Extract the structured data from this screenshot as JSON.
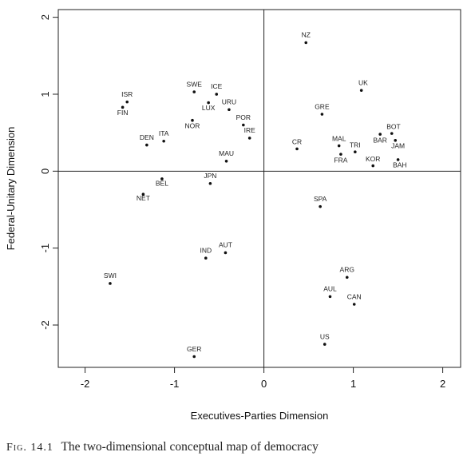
{
  "caption": {
    "fig_label": "Fig. 14.1",
    "text": "The two-dimensional conceptual map of democracy"
  },
  "chart_data": {
    "type": "scatter",
    "xlabel": "Executives-Parties Dimension",
    "ylabel": "Federal-Unitary Dimension",
    "xlim": [
      -2.3,
      2.2
    ],
    "ylim": [
      -2.55,
      2.1
    ],
    "xticks": [
      -2,
      -1,
      0,
      1,
      2
    ],
    "yticks": [
      -2,
      -1,
      0,
      1,
      2
    ],
    "xtick_labels": [
      "-2",
      "-1",
      "0",
      "1",
      "2"
    ],
    "ytick_labels": [
      "-2",
      "-1",
      "0",
      "1",
      "2"
    ],
    "reference_lines": {
      "x": 0,
      "y": 0
    },
    "grid": false,
    "points": [
      {
        "label": "NZ",
        "x": 0.47,
        "y": 1.67,
        "lx": 0.47,
        "ly": 1.74
      },
      {
        "label": "UK",
        "x": 1.09,
        "y": 1.05,
        "lx": 1.11,
        "ly": 1.12
      },
      {
        "label": "GRE",
        "x": 0.65,
        "y": 0.74,
        "lx": 0.65,
        "ly": 0.81
      },
      {
        "label": "BOT",
        "x": 1.43,
        "y": 0.49,
        "lx": 1.45,
        "ly": 0.55
      },
      {
        "label": "BAR",
        "x": 1.3,
        "y": 0.48,
        "lx": 1.3,
        "ly": 0.37
      },
      {
        "label": "JAM",
        "x": 1.47,
        "y": 0.4,
        "lx": 1.5,
        "ly": 0.3
      },
      {
        "label": "CR",
        "x": 0.37,
        "y": 0.29,
        "lx": 0.37,
        "ly": 0.35
      },
      {
        "label": "MAL",
        "x": 0.84,
        "y": 0.33,
        "lx": 0.84,
        "ly": 0.39
      },
      {
        "label": "TRI",
        "x": 1.02,
        "y": 0.25,
        "lx": 1.02,
        "ly": 0.31
      },
      {
        "label": "FRA",
        "x": 0.86,
        "y": 0.22,
        "lx": 0.86,
        "ly": 0.11
      },
      {
        "label": "KOR",
        "x": 1.22,
        "y": 0.07,
        "lx": 1.22,
        "ly": 0.13
      },
      {
        "label": "BAH",
        "x": 1.5,
        "y": 0.15,
        "lx": 1.52,
        "ly": 0.05
      },
      {
        "label": "SPA",
        "x": 0.63,
        "y": -0.46,
        "lx": 0.63,
        "ly": -0.39
      },
      {
        "label": "ARG",
        "x": 0.93,
        "y": -1.38,
        "lx": 0.93,
        "ly": -1.31
      },
      {
        "label": "AUL",
        "x": 0.74,
        "y": -1.63,
        "lx": 0.74,
        "ly": -1.56
      },
      {
        "label": "CAN",
        "x": 1.01,
        "y": -1.73,
        "lx": 1.01,
        "ly": -1.66
      },
      {
        "label": "US",
        "x": 0.68,
        "y": -2.25,
        "lx": 0.68,
        "ly": -2.18
      },
      {
        "label": "ISR",
        "x": -1.53,
        "y": 0.9,
        "lx": -1.53,
        "ly": 0.97
      },
      {
        "label": "FIN",
        "x": -1.58,
        "y": 0.83,
        "lx": -1.58,
        "ly": 0.73
      },
      {
        "label": "SWE",
        "x": -0.78,
        "y": 1.03,
        "lx": -0.78,
        "ly": 1.1
      },
      {
        "label": "ICE",
        "x": -0.53,
        "y": 1.0,
        "lx": -0.53,
        "ly": 1.07
      },
      {
        "label": "URU",
        "x": -0.39,
        "y": 0.8,
        "lx": -0.39,
        "ly": 0.87
      },
      {
        "label": "LUX",
        "x": -0.62,
        "y": 0.89,
        "lx": -0.62,
        "ly": 0.79
      },
      {
        "label": "POR",
        "x": -0.23,
        "y": 0.6,
        "lx": -0.23,
        "ly": 0.67
      },
      {
        "label": "NOR",
        "x": -0.8,
        "y": 0.66,
        "lx": -0.8,
        "ly": 0.56
      },
      {
        "label": "IRE",
        "x": -0.16,
        "y": 0.43,
        "lx": -0.16,
        "ly": 0.5
      },
      {
        "label": "ITA",
        "x": -1.12,
        "y": 0.39,
        "lx": -1.12,
        "ly": 0.46
      },
      {
        "label": "DEN",
        "x": -1.31,
        "y": 0.34,
        "lx": -1.31,
        "ly": 0.41
      },
      {
        "label": "MAU",
        "x": -0.42,
        "y": 0.13,
        "lx": -0.42,
        "ly": 0.2
      },
      {
        "label": "JPN",
        "x": -0.6,
        "y": -0.16,
        "lx": -0.6,
        "ly": -0.09
      },
      {
        "label": "BEL",
        "x": -1.14,
        "y": -0.1,
        "lx": -1.14,
        "ly": -0.19
      },
      {
        "label": "NET",
        "x": -1.35,
        "y": -0.3,
        "lx": -1.35,
        "ly": -0.38
      },
      {
        "label": "AUT",
        "x": -0.43,
        "y": -1.06,
        "lx": -0.43,
        "ly": -0.99
      },
      {
        "label": "IND",
        "x": -0.65,
        "y": -1.13,
        "lx": -0.65,
        "ly": -1.06
      },
      {
        "label": "SWI",
        "x": -1.72,
        "y": -1.46,
        "lx": -1.72,
        "ly": -1.39
      },
      {
        "label": "GER",
        "x": -0.78,
        "y": -2.41,
        "lx": -0.78,
        "ly": -2.34
      }
    ]
  }
}
